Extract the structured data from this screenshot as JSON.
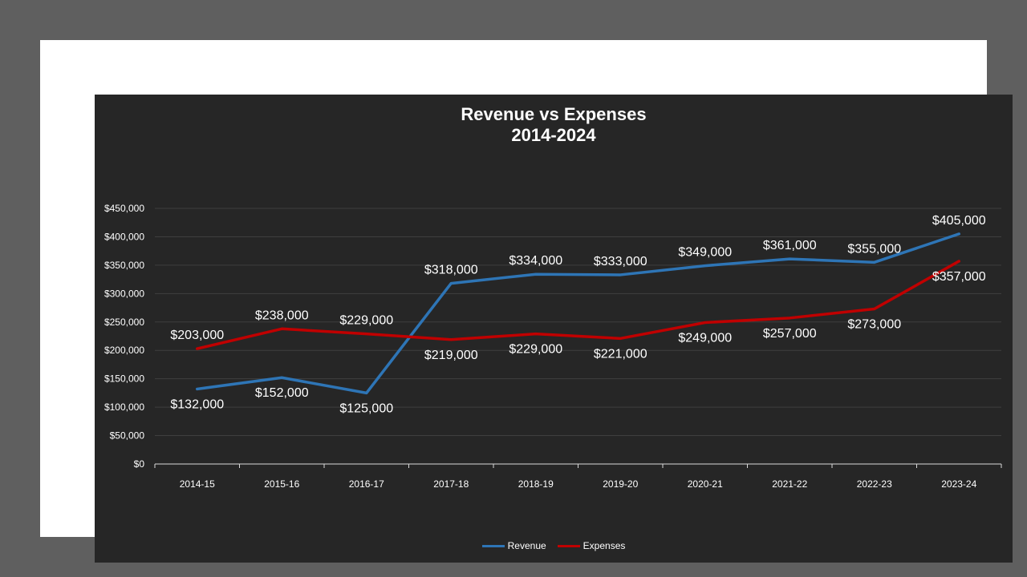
{
  "chart_data": {
    "type": "line",
    "title": "Revenue vs Expenses",
    "subtitle": "2014-2024",
    "categories": [
      "2014-15",
      "2015-16",
      "2016-17",
      "2017-18",
      "2018-19",
      "2019-20",
      "2020-21",
      "2021-22",
      "2022-23",
      "2023-24"
    ],
    "ylim": [
      0,
      450000
    ],
    "y_ticks": [
      0,
      50000,
      100000,
      150000,
      200000,
      250000,
      300000,
      350000,
      400000,
      450000
    ],
    "y_tick_labels": [
      "$0",
      "$50,000",
      "$100,000",
      "$150,000",
      "$200,000",
      "$250,000",
      "$300,000",
      "$350,000",
      "$400,000",
      "$450,000"
    ],
    "grid": true,
    "legend_position": "bottom",
    "series": [
      {
        "name": "Revenue",
        "color": "#2e75b6",
        "values": [
          132000,
          152000,
          125000,
          318000,
          334000,
          333000,
          349000,
          361000,
          355000,
          405000
        ],
        "labels": [
          "$132,000",
          "$152,000",
          "$125,000",
          "$318,000",
          "$334,000",
          "$333,000",
          "$349,000",
          "$361,000",
          "$355,000",
          "$405,000"
        ],
        "label_side": [
          "below",
          "below",
          "below",
          "above",
          "above",
          "above",
          "above",
          "above",
          "above",
          "above"
        ]
      },
      {
        "name": "Expenses",
        "color": "#c00000",
        "values": [
          203000,
          238000,
          229000,
          219000,
          229000,
          221000,
          249000,
          257000,
          273000,
          357000
        ],
        "labels": [
          "$203,000",
          "$238,000",
          "$229,000",
          "$219,000",
          "$229,000",
          "$221,000",
          "$249,000",
          "$257,000",
          "$273,000",
          "$357,000"
        ],
        "label_side": [
          "above",
          "above",
          "above",
          "below",
          "below",
          "below",
          "below",
          "below",
          "below",
          "below"
        ]
      }
    ]
  }
}
